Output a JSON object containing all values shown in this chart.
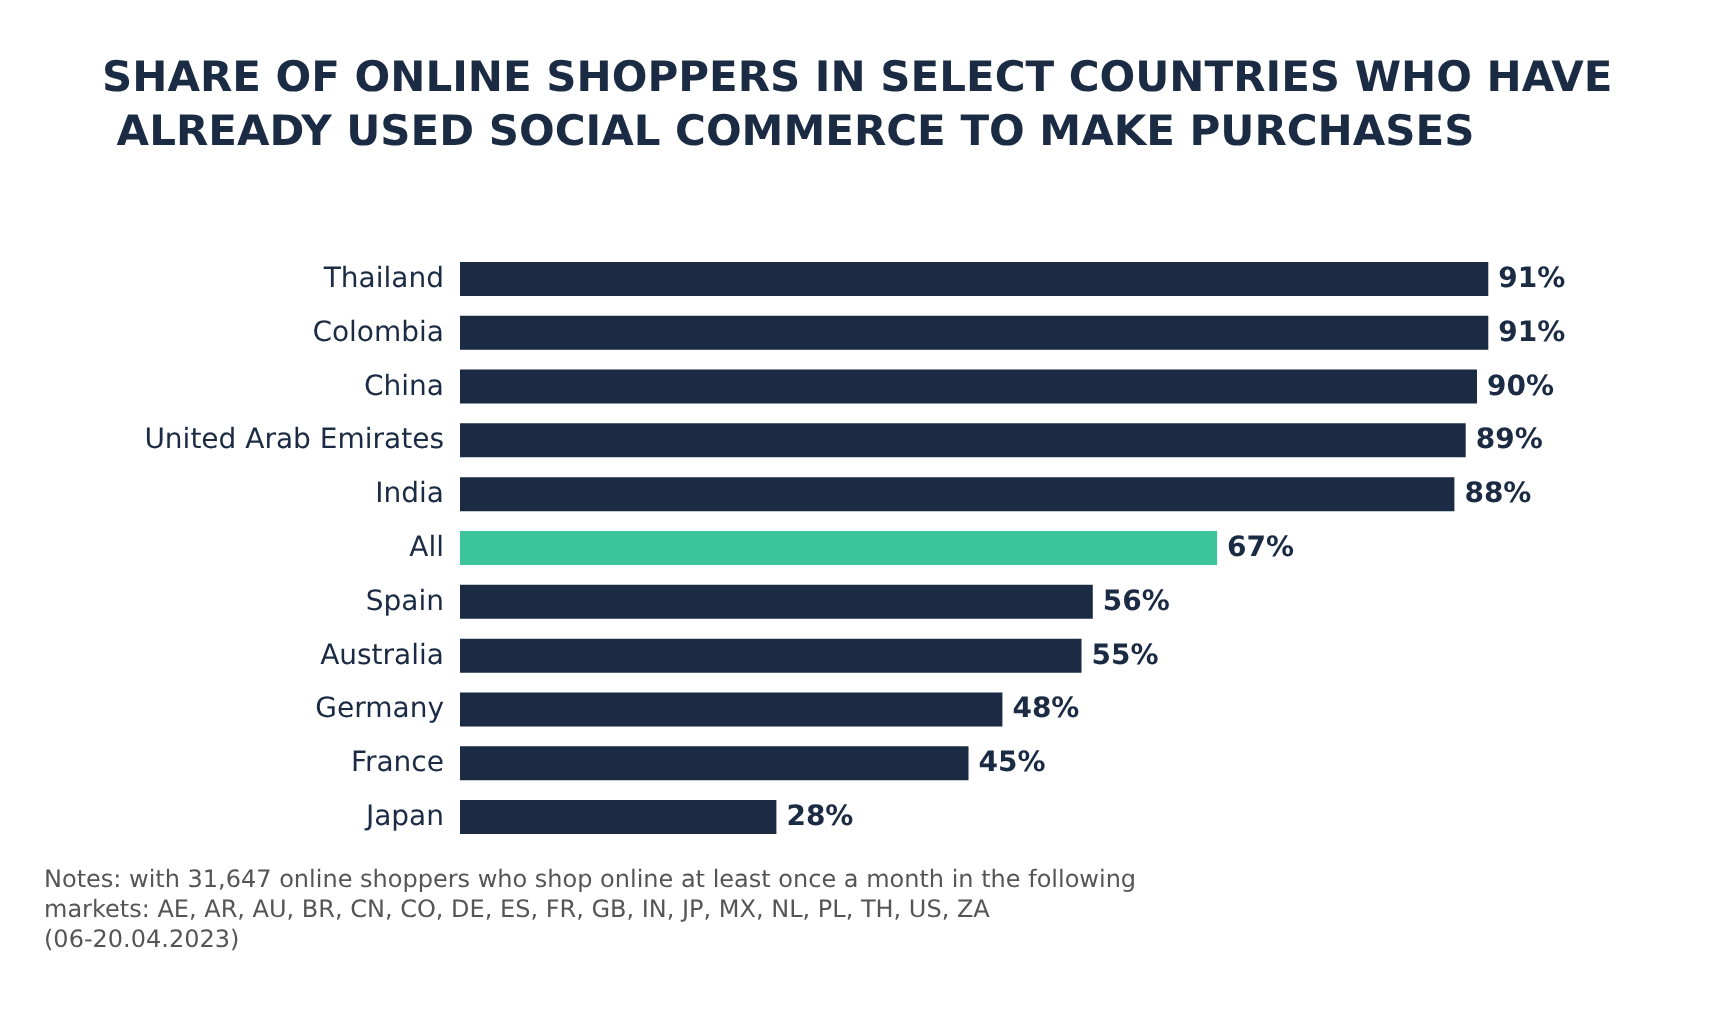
{
  "chart_data": {
    "type": "bar",
    "orientation": "horizontal",
    "title": "SHARE OF ONLINE SHOPPERS IN SELECT COUNTRIES WHO HAVE ALREADY USED SOCIAL COMMERCE TO MAKE PURCHASES",
    "categories": [
      "Thailand",
      "Colombia",
      "China",
      "United Arab Emirates",
      "India",
      "All",
      "Spain",
      "Australia",
      "Germany",
      "France",
      "Japan"
    ],
    "values": [
      91,
      91,
      90,
      89,
      88,
      67,
      56,
      55,
      48,
      45,
      28
    ],
    "value_labels": [
      "91%",
      "91%",
      "90%",
      "89%",
      "88%",
      "67%",
      "56%",
      "55%",
      "48%",
      "45%",
      "28%"
    ],
    "colors": [
      "#1b2b44",
      "#1b2b44",
      "#1b2b44",
      "#1b2b44",
      "#1b2b44",
      "#3cc49b",
      "#1b2b44",
      "#1b2b44",
      "#1b2b44",
      "#1b2b44",
      "#1b2b44"
    ],
    "annotations": [
      "Notes: with 31,647 online shoppers who shop online at least once a month in the following markets: AE, AR, AU, BR, CN, CO, DE, ES, FR, GB, IN, JP, MX, NL, PL, TH, US, ZA (06-20.04.2023)"
    ]
  }
}
